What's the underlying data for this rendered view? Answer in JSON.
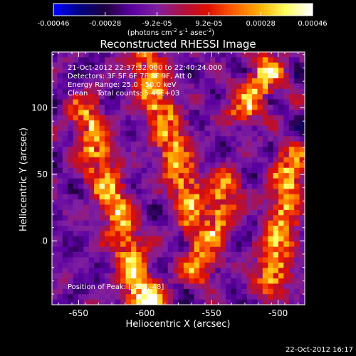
{
  "chart_data": {
    "type": "heatmap",
    "title": "Reconstructed RHESSI Image",
    "xlabel": "Heliocentric X (arcsec)",
    "ylabel": "Heliocentric Y (arcsec)",
    "xlim": [
      -670,
      -480
    ],
    "ylim": [
      -48,
      142
    ],
    "x_ticks": [
      -650,
      -600,
      -550,
      -500
    ],
    "y_ticks": [
      0,
      50,
      100
    ],
    "colormap": "idl-red-temperature",
    "colorbar": {
      "ticks": [
        "-0.00046",
        "-0.00028",
        "-9.2e-05",
        "9.2e-05",
        "0.00028",
        "0.00046"
      ],
      "range": [
        -0.00046,
        0.00046
      ],
      "label": "(photons cm-2 s-1 asec-2)",
      "label_base": "(photons cm",
      "label_sup1": "-2",
      "label_mid": " s",
      "label_sup2": "-1",
      "label_end": " asec",
      "label_sup3": "-2",
      "label_close": ")"
    },
    "annotations": [
      "21-Oct-2012 22:37:32.000 to 22:40:24.000",
      "Detectors: 3F 5F 6F 7F 8F 9F, Att 0",
      "Energy Range: 25.0 - 50.0 keV",
      "Clean    Total counts: 5.49E+03"
    ],
    "peak_label": "Position of Peak: [-599,-48]",
    "peak_position": [
      -599,
      -48
    ],
    "emission_ridges": [
      {
        "from": [
          -645,
          95
        ],
        "to": [
          -600,
          -48
        ]
      },
      {
        "from": [
          -600,
          135
        ],
        "to": [
          -560,
          10
        ]
      },
      {
        "from": [
          -540,
          40
        ],
        "to": [
          -560,
          -20
        ]
      },
      {
        "from": [
          -525,
          100
        ],
        "to": [
          -505,
          130
        ]
      },
      {
        "from": [
          -490,
          60
        ],
        "to": [
          -505,
          -30
        ]
      }
    ]
  },
  "timestamp": "22-Oct-2012 16:17",
  "colors": {
    "background": "#000000",
    "foreground": "#ffffff",
    "colormap_stops": [
      "#0000ff",
      "#000080",
      "#200040",
      "#5a00a0",
      "#8020a0",
      "#b01040",
      "#e01000",
      "#ff6000",
      "#ffb000",
      "#ffff60",
      "#ffffff"
    ]
  }
}
